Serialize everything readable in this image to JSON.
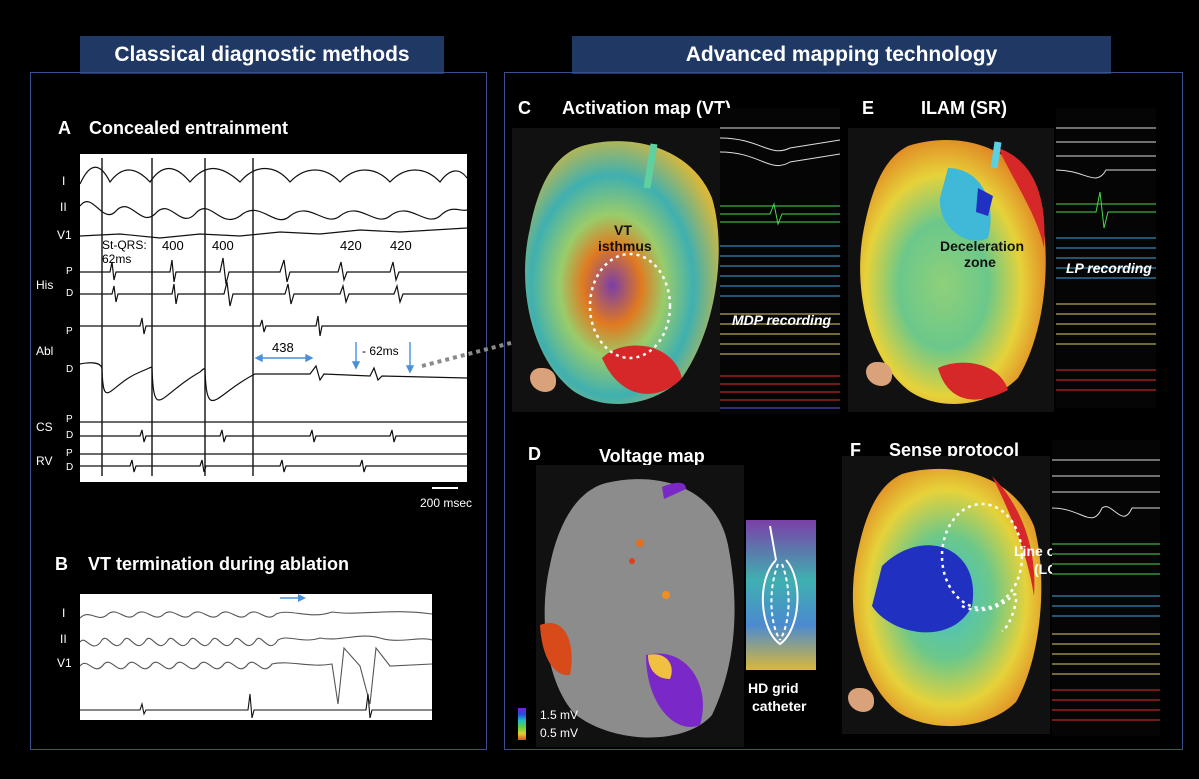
{
  "left": {
    "banner": "Classical diagnostic methods",
    "panel_a": {
      "letter": "A",
      "title": "Concealed entrainment",
      "leads": [
        "I",
        "II",
        "V1"
      ],
      "his": "His",
      "abl": "Abl",
      "cs": "CS",
      "rv": "RV",
      "p": "P",
      "d": "D",
      "st_qrs": "St-QRS:",
      "st_qrs_val": "62ms",
      "intervals": [
        "400",
        "400",
        "420",
        "420"
      ],
      "interval_438": "438",
      "delay": "- 62ms",
      "scale": "200 msec"
    },
    "panel_b": {
      "letter": "B",
      "title": "VT termination during ablation",
      "leads": [
        "I",
        "II",
        "V1"
      ]
    }
  },
  "right": {
    "banner": "Advanced mapping technology",
    "panel_c": {
      "letter": "C",
      "title": "Activation map (VT)",
      "isthmus_1": "VT",
      "isthmus_2": "isthmus",
      "recording": "MDP recording"
    },
    "panel_d": {
      "letter": "D",
      "title": "Voltage map",
      "legend_high": "1.5 mV",
      "legend_low": "0.5 mV",
      "catheter_1": "HD grid",
      "catheter_2": "catheter"
    },
    "panel_e": {
      "letter": "E",
      "title": "ILAM (SR)",
      "zone_1": "Deceleration",
      "zone_2": "zone",
      "recording": "LP recording"
    },
    "panel_f": {
      "letter": "F",
      "title": "Sense protocol",
      "lob_1": "Line of block",
      "lob_2": "(LOB)"
    }
  },
  "colors": {
    "banner": "#1f3864",
    "frame": "#3c4f8c",
    "arrow": "#4a90d9"
  }
}
